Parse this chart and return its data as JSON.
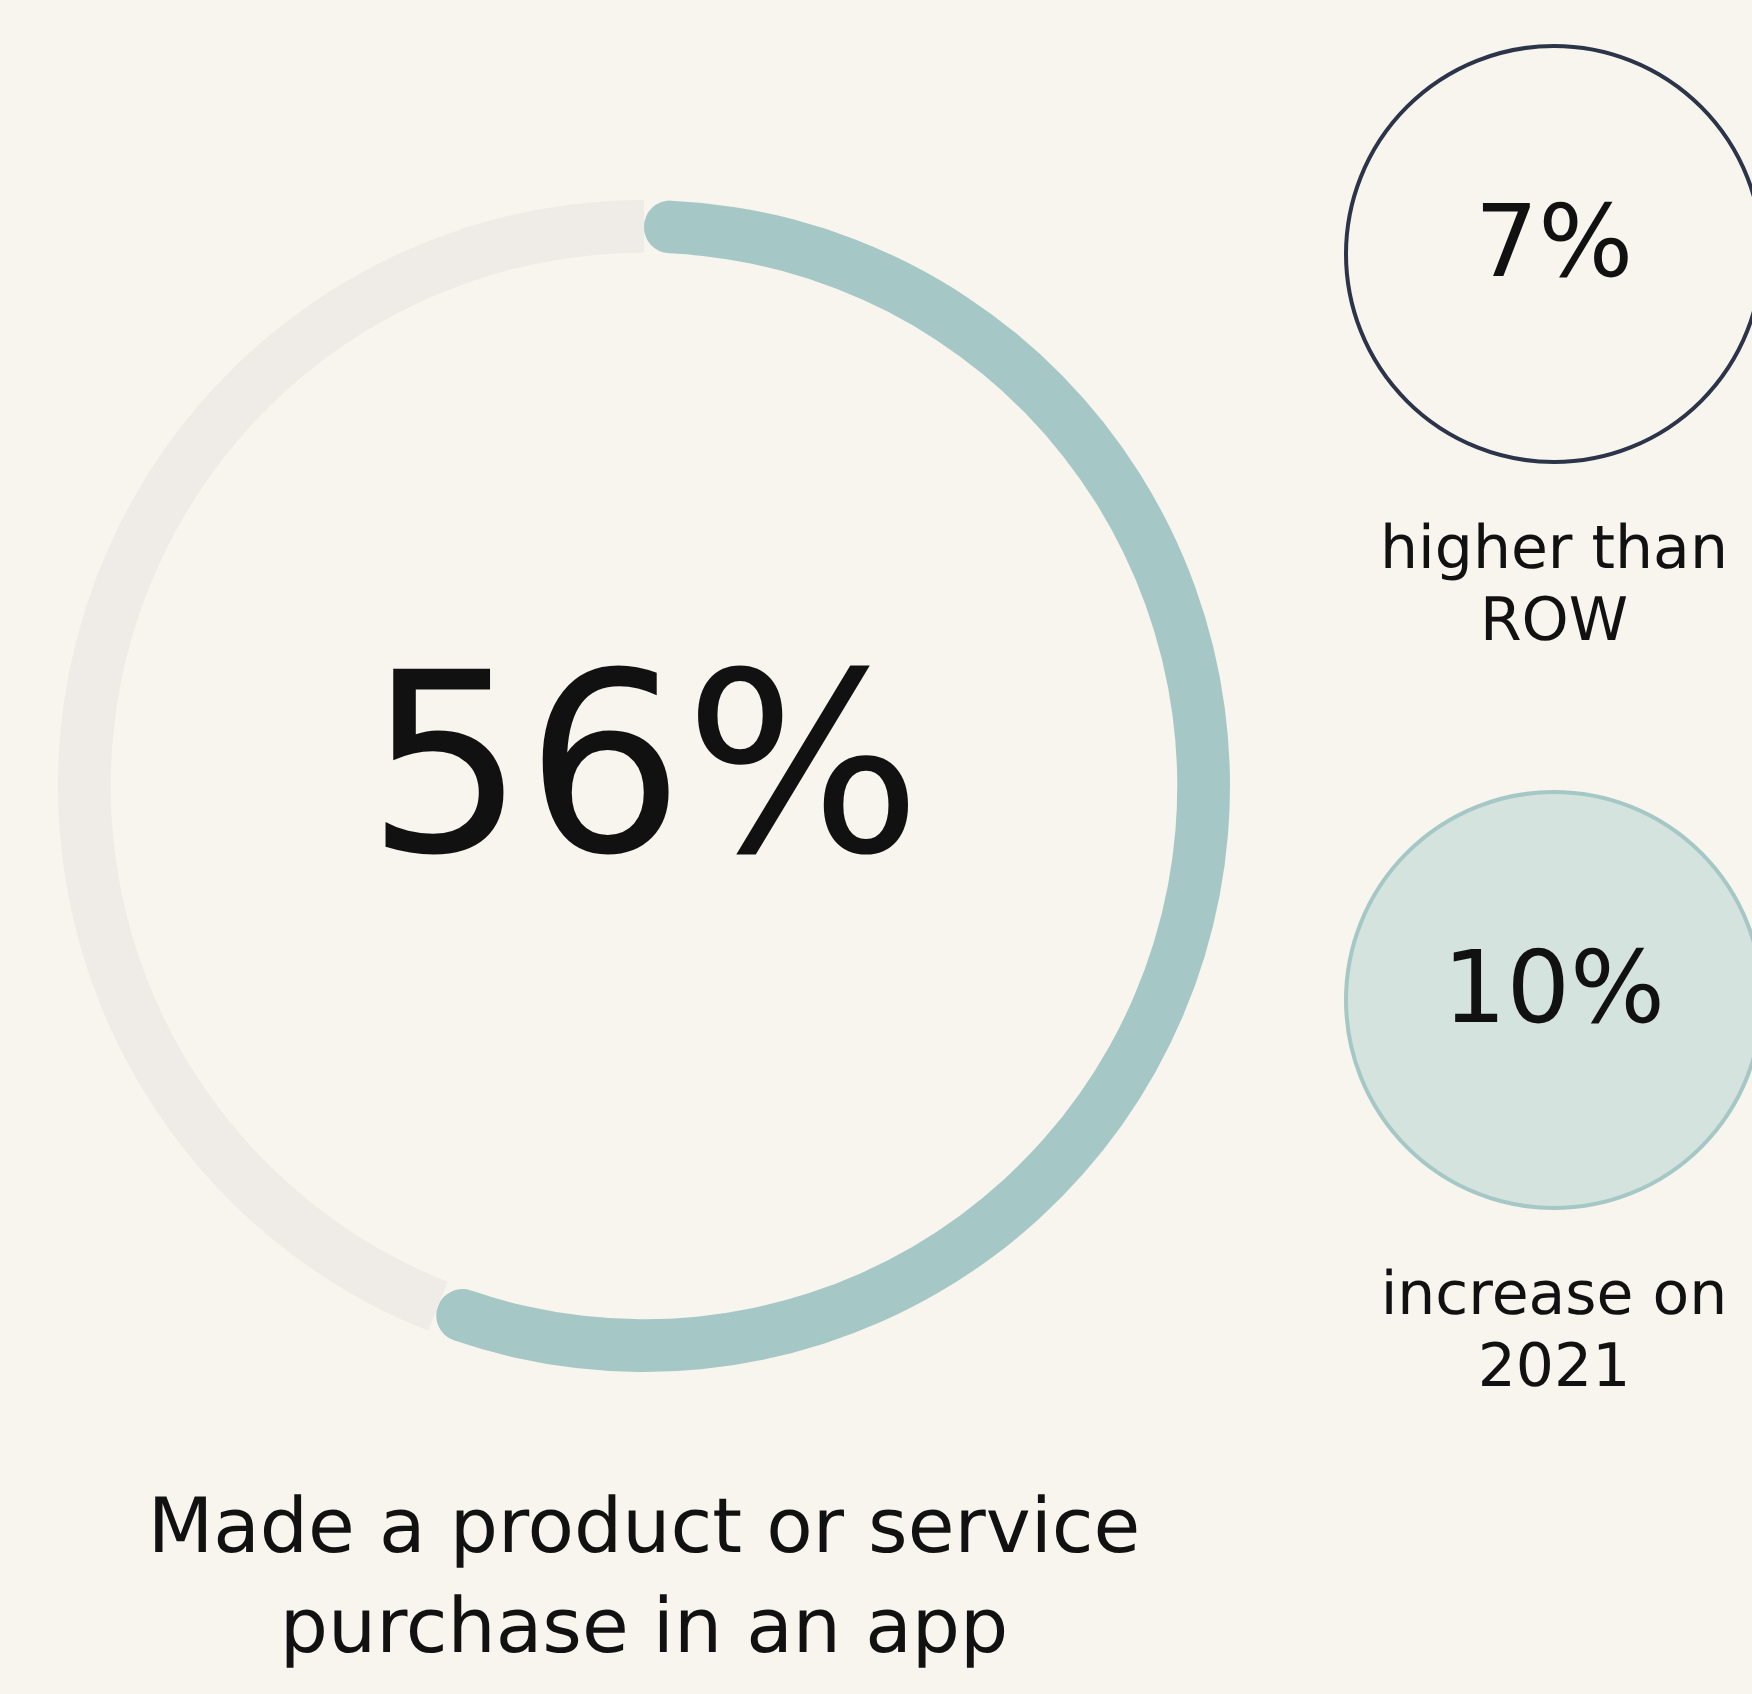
{
  "chart_data": {
    "type": "donut",
    "categories": [
      null,
      null
    ],
    "values": [
      56,
      44
    ],
    "colors": [
      "#a5c8c6",
      "#efebe6"
    ],
    "annotations": [
      "56%",
      "Made a product or service purchase in an app",
      "7%",
      "higher than ROW",
      "10%",
      "increase on 2021"
    ]
  }
}
